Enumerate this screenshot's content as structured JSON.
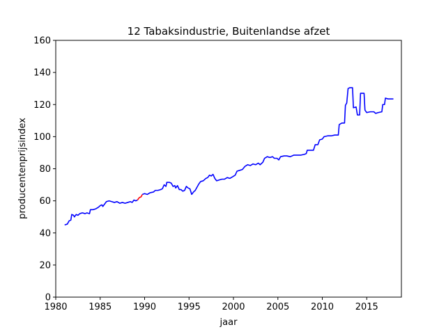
{
  "chart_data": {
    "type": "line",
    "title": "12 Tabaksindustrie, Buitenlandse afzet",
    "xlabel": "jaar",
    "ylabel": "producentenprijsindex",
    "xlim": [
      1980,
      2018.9
    ],
    "ylim": [
      0,
      160
    ],
    "xticks": [
      1980,
      1985,
      1990,
      1995,
      2000,
      2005,
      2010,
      2015
    ],
    "yticks": [
      0,
      20,
      40,
      60,
      80,
      100,
      120,
      140,
      160
    ],
    "grid": false,
    "legend": "none",
    "series": [
      {
        "color": "#0000ff",
        "points": [
          [
            1981.0,
            45.0
          ],
          [
            1981.3,
            45.5
          ],
          [
            1981.5,
            47.5
          ],
          [
            1981.7,
            48.0
          ],
          [
            1981.8,
            51.5
          ],
          [
            1982.0,
            51.0
          ],
          [
            1982.1,
            50.0
          ],
          [
            1982.3,
            51.5
          ],
          [
            1982.5,
            51.0
          ],
          [
            1982.7,
            52.0
          ],
          [
            1983.0,
            52.5
          ],
          [
            1983.3,
            52.0
          ],
          [
            1983.5,
            52.5
          ],
          [
            1983.8,
            52.0
          ],
          [
            1983.9,
            54.5
          ],
          [
            1984.2,
            54.5
          ],
          [
            1984.5,
            55.0
          ],
          [
            1984.8,
            56.0
          ],
          [
            1985.0,
            57.0
          ],
          [
            1985.2,
            57.5
          ],
          [
            1985.3,
            56.5
          ],
          [
            1985.5,
            58.0
          ],
          [
            1985.7,
            59.5
          ],
          [
            1986.0,
            60.0
          ],
          [
            1986.3,
            59.5
          ],
          [
            1986.6,
            59.0
          ],
          [
            1986.9,
            59.5
          ],
          [
            1987.2,
            58.5
          ],
          [
            1987.5,
            59.0
          ],
          [
            1987.8,
            58.5
          ],
          [
            1988.1,
            59.0
          ],
          [
            1988.4,
            59.5
          ],
          [
            1988.6,
            59.0
          ],
          [
            1988.8,
            60.5
          ],
          [
            1989.0,
            60.0
          ],
          [
            1989.2,
            60.5
          ]
        ]
      },
      {
        "color": "#ff0000",
        "points": [
          [
            1989.2,
            60.5
          ],
          [
            1989.4,
            62.0
          ],
          [
            1989.6,
            62.5
          ],
          [
            1989.75,
            64.0
          ]
        ]
      },
      {
        "color": "#0000ff",
        "points": [
          [
            1989.75,
            64.0
          ],
          [
            1990.0,
            64.5
          ],
          [
            1990.3,
            64.0
          ],
          [
            1990.6,
            65.0
          ],
          [
            1991.0,
            65.5
          ],
          [
            1991.2,
            66.5
          ],
          [
            1991.5,
            66.5
          ],
          [
            1991.8,
            67.0
          ],
          [
            1992.0,
            67.5
          ],
          [
            1992.2,
            70.0
          ],
          [
            1992.4,
            69.0
          ],
          [
            1992.5,
            71.5
          ],
          [
            1992.8,
            71.5
          ],
          [
            1993.0,
            71.0
          ],
          [
            1993.2,
            69.0
          ],
          [
            1993.4,
            69.5
          ],
          [
            1993.5,
            68.0
          ],
          [
            1993.7,
            69.5
          ],
          [
            1993.9,
            67.0
          ],
          [
            1994.1,
            67.0
          ],
          [
            1994.3,
            66.0
          ],
          [
            1994.5,
            66.5
          ],
          [
            1994.7,
            69.0
          ],
          [
            1994.9,
            68.0
          ],
          [
            1995.1,
            67.5
          ],
          [
            1995.3,
            64.0
          ],
          [
            1995.5,
            65.5
          ],
          [
            1995.7,
            66.5
          ],
          [
            1995.9,
            68.5
          ],
          [
            1996.1,
            70.5
          ],
          [
            1996.3,
            72.0
          ],
          [
            1996.6,
            72.5
          ],
          [
            1996.9,
            74.0
          ],
          [
            1997.1,
            74.5
          ],
          [
            1997.3,
            76.0
          ],
          [
            1997.5,
            75.5
          ],
          [
            1997.7,
            76.5
          ],
          [
            1997.9,
            74.0
          ],
          [
            1998.1,
            72.5
          ],
          [
            1998.4,
            73.0
          ],
          [
            1998.7,
            73.5
          ],
          [
            1999.0,
            73.5
          ],
          [
            1999.3,
            74.5
          ],
          [
            1999.6,
            74.0
          ],
          [
            1999.9,
            75.0
          ],
          [
            2000.2,
            76.0
          ],
          [
            2000.4,
            78.5
          ],
          [
            2000.7,
            79.0
          ],
          [
            2001.0,
            79.5
          ],
          [
            2001.3,
            81.5
          ],
          [
            2001.6,
            82.5
          ],
          [
            2001.9,
            82.0
          ],
          [
            2002.2,
            83.0
          ],
          [
            2002.5,
            82.5
          ],
          [
            2002.8,
            83.5
          ],
          [
            2003.0,
            82.5
          ],
          [
            2003.3,
            84.0
          ],
          [
            2003.5,
            86.5
          ],
          [
            2003.8,
            87.5
          ],
          [
            2004.1,
            87.0
          ],
          [
            2004.4,
            87.5
          ],
          [
            2004.6,
            86.5
          ],
          [
            2004.9,
            86.5
          ],
          [
            2005.1,
            85.5
          ],
          [
            2005.3,
            87.5
          ],
          [
            2005.7,
            88.0
          ],
          [
            2006.0,
            88.0
          ],
          [
            2006.4,
            87.5
          ],
          [
            2006.8,
            88.5
          ],
          [
            2007.2,
            88.5
          ],
          [
            2007.6,
            88.5
          ],
          [
            2008.0,
            89.0
          ],
          [
            2008.2,
            89.5
          ],
          [
            2008.3,
            91.5
          ],
          [
            2008.8,
            91.5
          ],
          [
            2009.0,
            91.5
          ],
          [
            2009.2,
            95.0
          ],
          [
            2009.5,
            95.0
          ],
          [
            2009.7,
            98.0
          ],
          [
            2010.0,
            98.5
          ],
          [
            2010.2,
            100.0
          ],
          [
            2010.6,
            100.5
          ],
          [
            2011.0,
            100.5
          ],
          [
            2011.4,
            101.0
          ],
          [
            2011.8,
            101.0
          ],
          [
            2011.9,
            107.5
          ],
          [
            2012.2,
            108.5
          ],
          [
            2012.5,
            108.5
          ],
          [
            2012.6,
            119.5
          ],
          [
            2012.75,
            121.0
          ],
          [
            2012.9,
            130.0
          ],
          [
            2013.1,
            130.5
          ],
          [
            2013.4,
            130.5
          ],
          [
            2013.5,
            118.0
          ],
          [
            2013.8,
            118.5
          ],
          [
            2013.95,
            113.5
          ],
          [
            2014.2,
            113.5
          ],
          [
            2014.3,
            127.0
          ],
          [
            2014.7,
            127.0
          ],
          [
            2014.8,
            116.5
          ],
          [
            2015.0,
            115.0
          ],
          [
            2015.4,
            115.5
          ],
          [
            2015.8,
            115.5
          ],
          [
            2016.0,
            114.5
          ],
          [
            2016.3,
            115.0
          ],
          [
            2016.7,
            115.5
          ],
          [
            2016.8,
            120.0
          ],
          [
            2017.0,
            120.0
          ],
          [
            2017.1,
            124.0
          ],
          [
            2017.4,
            123.5
          ],
          [
            2017.6,
            123.5
          ],
          [
            2018.0,
            123.5
          ]
        ]
      }
    ]
  }
}
